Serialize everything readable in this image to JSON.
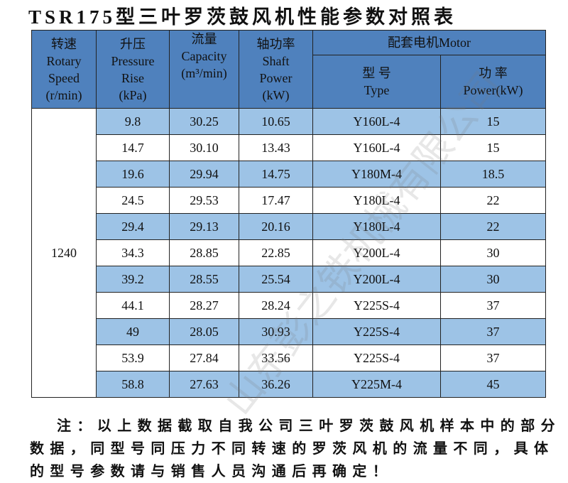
{
  "title": "TSR175型三叶罗茨鼓风机性能参数对照表",
  "watermark": "山东彭之铁机械有限公司",
  "table": {
    "header": {
      "speed": [
        "转速",
        "Rotary",
        "Speed",
        "(r/min)"
      ],
      "pressure": [
        "升压",
        "Pressure",
        "Rise",
        "(kPa)"
      ],
      "capacity": [
        "流量",
        "Capacity",
        "(m³/min)"
      ],
      "shaft": [
        "轴功率",
        "Shaft",
        "Power",
        "(kW)"
      ],
      "motor": "配套电机Motor",
      "motor_type": [
        "型 号",
        "Type"
      ],
      "motor_power": [
        "功 率",
        "Power(kW)"
      ]
    },
    "speed": "1240",
    "rows": [
      [
        "9.8",
        "30.25",
        "10.65",
        "Y160L-4",
        "15"
      ],
      [
        "14.7",
        "30.10",
        "13.43",
        "Y160L-4",
        "15"
      ],
      [
        "19.6",
        "29.94",
        "14.75",
        "Y180M-4",
        "18.5"
      ],
      [
        "24.5",
        "29.53",
        "17.47",
        "Y180L-4",
        "22"
      ],
      [
        "29.4",
        "29.13",
        "20.16",
        "Y180L-4",
        "22"
      ],
      [
        "34.3",
        "28.85",
        "22.85",
        "Y200L-4",
        "30"
      ],
      [
        "39.2",
        "28.55",
        "25.54",
        "Y200L-4",
        "30"
      ],
      [
        "44.1",
        "28.27",
        "28.24",
        "Y225S-4",
        "37"
      ],
      [
        "49",
        "28.05",
        "30.93",
        "Y225S-4",
        "37"
      ],
      [
        "53.9",
        "27.84",
        "33.56",
        "Y225S-4",
        "37"
      ],
      [
        "58.8",
        "27.63",
        "36.26",
        "Y225M-4",
        "45"
      ]
    ]
  },
  "note": {
    "lines": [
      "注：以上数据截取自我公司三叶罗茨鼓风机样本中的部分",
      "数据，同型号同压力不同转速的罗茨风机的流量不同，具体",
      "的型号参数请与销售人员沟通后再确定！"
    ]
  }
}
